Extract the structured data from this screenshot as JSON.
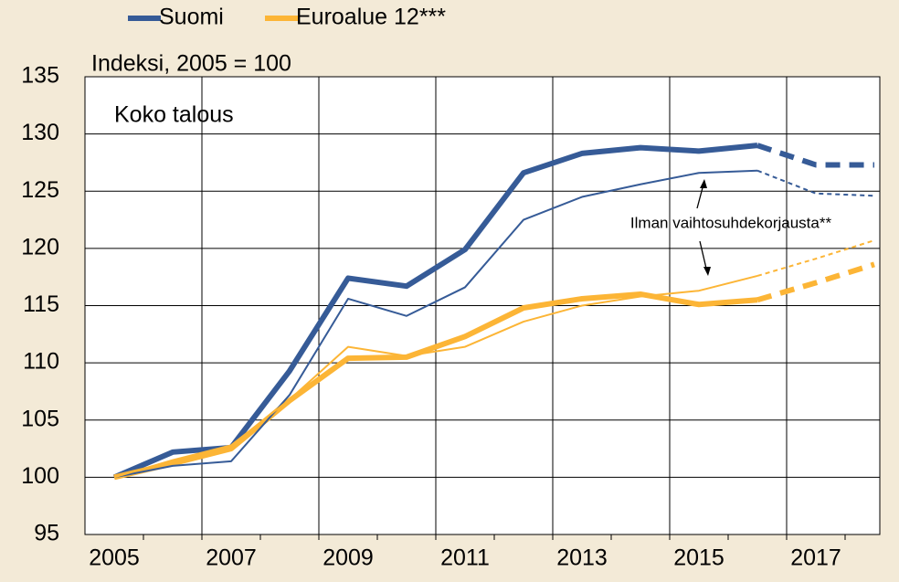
{
  "chart_data": {
    "type": "line",
    "subtitle": "Indeksi, 2005 = 100",
    "annotations": [
      "Koko talous",
      "Ilman vaihtosuhdekorjausta**"
    ],
    "categories": [
      "2005",
      null,
      "2007",
      null,
      "2009",
      null,
      "2011",
      null,
      "2013",
      null,
      "2015",
      null,
      "2017",
      null
    ],
    "series": [
      {
        "name": "Suomi",
        "color": "#365b97",
        "width": "thick",
        "dashed_from": 11,
        "values": [
          100,
          102.2,
          102.6,
          109.3,
          117.4,
          116.7,
          119.9,
          126.6,
          128.3,
          128.8,
          128.5,
          129,
          127.3,
          127.3
        ]
      },
      {
        "name": "Euroalue 12***",
        "color": "#fcb536",
        "width": "thick",
        "dashed_from": 11,
        "values": [
          100,
          101.2,
          102.5,
          106.7,
          110.4,
          110.5,
          112.3,
          114.8,
          115.6,
          116,
          115.1,
          115.5,
          117,
          118.6
        ]
      },
      {
        "color": "#365b97",
        "width": "thin",
        "dashed_from": 11,
        "values": [
          100,
          101,
          101.4,
          107.2,
          115.6,
          114.1,
          116.6,
          122.5,
          124.5,
          125.6,
          126.6,
          126.8,
          124.8,
          124.6
        ]
      },
      {
        "color": "#fcb536",
        "width": "thin",
        "dashed_from": 11,
        "values": [
          100,
          101.5,
          102.8,
          106.8,
          111.4,
          110.6,
          111.4,
          113.6,
          115,
          115.8,
          116.3,
          117.6,
          119.1,
          120.7
        ]
      }
    ],
    "ylim": [
      95,
      135
    ],
    "yticks": [
      95,
      100,
      105,
      110,
      115,
      120,
      125,
      130,
      135
    ],
    "grid": true
  }
}
